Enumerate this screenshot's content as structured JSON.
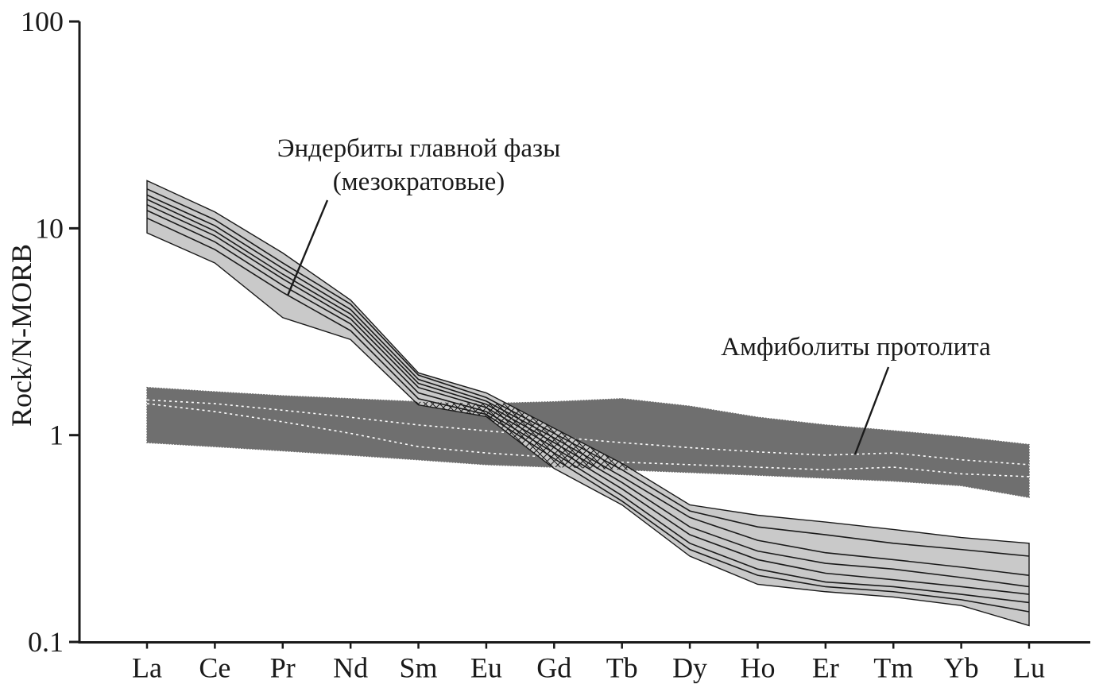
{
  "ylabel": "Rock/N-MORB",
  "annotations": {
    "enderbite_line1": "Эндербиты главной фазы",
    "enderbite_line2": "(мезократовые)",
    "amphibolite": "Амфиболиты протолита"
  },
  "colors": {
    "axis": "#1a1a1a",
    "text": "#1a1a1a",
    "light_band": "#c9c9c9",
    "dark_band": "#6f6f6f",
    "sample_line_black": "#1a1a1a",
    "sample_line_white": "#ffffff"
  },
  "chart_data": {
    "type": "area",
    "subtype": "REE spider diagram (N-MORB normalized), log y-axis, two shaded sample fields with individual sample lines and cross-hatched overlap",
    "title": "",
    "xlabel": "",
    "ylabel": "Rock/N-MORB",
    "x_categories": [
      "La",
      "Ce",
      "Pr",
      "Nd",
      "Sm",
      "Eu",
      "Gd",
      "Tb",
      "Dy",
      "Ho",
      "Er",
      "Tm",
      "Yb",
      "Lu"
    ],
    "y_scale": "log",
    "y_range": [
      0.1,
      100
    ],
    "y_ticks": [
      100,
      10,
      1,
      0.1
    ],
    "y_tick_labels": [
      "100",
      "10",
      "1",
      "0.1"
    ],
    "grid": false,
    "legend": "none; fields labeled by annotations with leader lines",
    "bands": [
      {
        "name": "Эндербиты главной фазы (мезократовые)",
        "fill_hex": "#c9c9c9",
        "edge_hex": "#1a1a1a",
        "upper": [
          17,
          12,
          7.6,
          4.5,
          2.0,
          1.6,
          1.08,
          0.73,
          0.46,
          0.41,
          0.38,
          0.35,
          0.32,
          0.3
        ],
        "lower": [
          9.5,
          6.8,
          3.7,
          2.9,
          1.4,
          1.23,
          0.69,
          0.46,
          0.26,
          0.19,
          0.175,
          0.165,
          0.15,
          0.12
        ],
        "sample_line_style": "solid-black",
        "sample_lines": [
          [
            15.5,
            11.0,
            6.8,
            4.3,
            1.95,
            1.52,
            1.02,
            0.68,
            0.43,
            0.36,
            0.33,
            0.3,
            0.28,
            0.26
          ],
          [
            14.5,
            10.3,
            6.4,
            4.05,
            1.86,
            1.46,
            0.97,
            0.63,
            0.4,
            0.31,
            0.27,
            0.25,
            0.23,
            0.21
          ],
          [
            13.8,
            9.7,
            6.0,
            3.85,
            1.78,
            1.41,
            0.92,
            0.59,
            0.36,
            0.275,
            0.24,
            0.225,
            0.205,
            0.185
          ],
          [
            13.0,
            9.2,
            5.7,
            3.65,
            1.7,
            1.36,
            0.87,
            0.55,
            0.33,
            0.25,
            0.215,
            0.2,
            0.185,
            0.17
          ],
          [
            12.2,
            8.6,
            5.3,
            3.45,
            1.6,
            1.3,
            0.82,
            0.51,
            0.3,
            0.225,
            0.195,
            0.185,
            0.17,
            0.155
          ],
          [
            11.2,
            7.9,
            4.9,
            3.2,
            1.5,
            1.26,
            0.77,
            0.48,
            0.28,
            0.21,
            0.185,
            0.175,
            0.16,
            0.14
          ]
        ]
      },
      {
        "name": "Амфиболиты протолита",
        "fill_hex": "#6f6f6f",
        "edge_hex": "#6f6f6f",
        "upper": [
          1.7,
          1.62,
          1.55,
          1.5,
          1.45,
          1.42,
          1.45,
          1.5,
          1.38,
          1.22,
          1.12,
          1.05,
          0.98,
          0.9
        ],
        "lower": [
          0.92,
          0.88,
          0.84,
          0.8,
          0.76,
          0.72,
          0.7,
          0.68,
          0.66,
          0.64,
          0.62,
          0.6,
          0.57,
          0.5
        ],
        "sample_line_style": "dotted-white",
        "sample_lines": [
          [
            1.48,
            1.42,
            1.32,
            1.22,
            1.12,
            1.05,
            0.98,
            0.92,
            0.87,
            0.83,
            0.8,
            0.82,
            0.76,
            0.72
          ],
          [
            1.42,
            1.3,
            1.16,
            1.02,
            0.88,
            0.82,
            0.78,
            0.74,
            0.72,
            0.7,
            0.68,
            0.7,
            0.65,
            0.63
          ]
        ]
      }
    ],
    "overlap_hatch": {
      "description": "black cross-hatching where the two fields intersect (approx. Sm–Dy)",
      "style": "black-crosshatch"
    }
  }
}
